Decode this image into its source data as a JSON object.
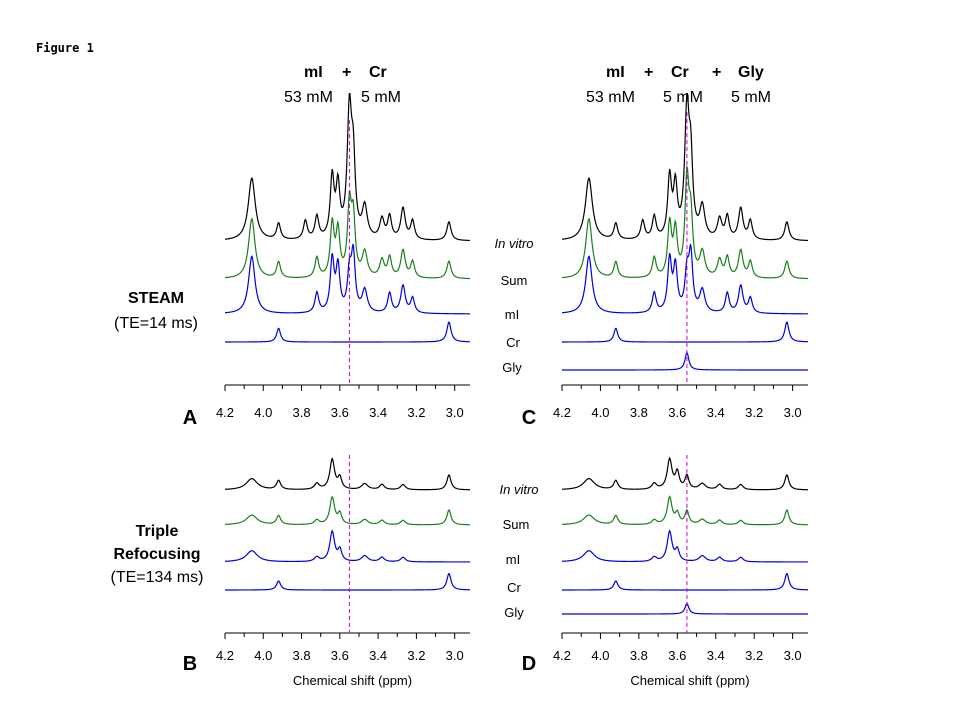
{
  "figure_label": "Figure 1",
  "colors": {
    "in_vitro": "#000000",
    "sum": "#1a7f1a",
    "basis": "#0000dd",
    "marker": "#cc00cc"
  },
  "headers": {
    "left": {
      "line1": [
        "mI",
        "+",
        "Cr"
      ],
      "line2": [
        "53 mM",
        "5 mM"
      ]
    },
    "right": {
      "line1": [
        "mI",
        "+",
        "Cr",
        "+",
        "Gly"
      ],
      "line2": [
        "53 mM",
        "5 mM",
        "5 mM"
      ]
    }
  },
  "sequences": {
    "steam": {
      "name": "STEAM",
      "param": "(TE=14 ms)"
    },
    "triple": {
      "name_line1": "Triple",
      "name_line2": "Refocusing",
      "param": "(TE=134 ms)"
    }
  },
  "row_labels": {
    "top": [
      "In vitro",
      "Sum",
      "mI",
      "Cr",
      "Gly"
    ],
    "bottom": [
      "In vitro",
      "Sum",
      "mI",
      "Cr",
      "Gly"
    ]
  },
  "chart_data": [
    {
      "type": "line",
      "panel": "A",
      "title": "STEAM (TE=14 ms)",
      "xlabel": "",
      "xlim": [
        4.2,
        2.92
      ],
      "xreversed": true,
      "xticks": [
        "4.2",
        "4.0",
        "3.8",
        "3.6",
        "3.4",
        "3.2",
        "3.0"
      ],
      "marker_ppm": 3.55,
      "series": [
        {
          "name": "In vitro",
          "color": "#000000",
          "peaks": [
            [
              4.06,
              0.5,
              0.022
            ],
            [
              3.92,
              0.13,
              0.012
            ],
            [
              3.78,
              0.15,
              0.012
            ],
            [
              3.72,
              0.18,
              0.012
            ],
            [
              3.64,
              0.48,
              0.012
            ],
            [
              3.61,
              0.4,
              0.012
            ],
            [
              3.55,
              1.0,
              0.014
            ],
            [
              3.53,
              0.55,
              0.012
            ],
            [
              3.47,
              0.25,
              0.016
            ],
            [
              3.38,
              0.16,
              0.014
            ],
            [
              3.34,
              0.18,
              0.012
            ],
            [
              3.27,
              0.25,
              0.014
            ],
            [
              3.22,
              0.15,
              0.012
            ],
            [
              3.03,
              0.15,
              0.013
            ]
          ]
        },
        {
          "name": "Sum",
          "color": "#1a7f1a",
          "peaks": [
            [
              4.06,
              0.48,
              0.02
            ],
            [
              3.92,
              0.13,
              0.012
            ],
            [
              3.72,
              0.16,
              0.012
            ],
            [
              3.64,
              0.42,
              0.012
            ],
            [
              3.61,
              0.36,
              0.012
            ],
            [
              3.53,
              0.45,
              0.012
            ],
            [
              3.55,
              0.55,
              0.012
            ],
            [
              3.47,
              0.2,
              0.016
            ],
            [
              3.38,
              0.14,
              0.014
            ],
            [
              3.34,
              0.16,
              0.012
            ],
            [
              3.27,
              0.22,
              0.014
            ],
            [
              3.22,
              0.13,
              0.012
            ],
            [
              3.03,
              0.14,
              0.013
            ]
          ]
        },
        {
          "name": "mI",
          "color": "#0000dd",
          "peaks": [
            [
              4.06,
              0.46,
              0.02
            ],
            [
              3.72,
              0.16,
              0.012
            ],
            [
              3.64,
              0.42,
              0.012
            ],
            [
              3.61,
              0.36,
              0.012
            ],
            [
              3.53,
              0.45,
              0.012
            ],
            [
              3.55,
              0.3,
              0.012
            ],
            [
              3.47,
              0.18,
              0.016
            ],
            [
              3.34,
              0.16,
              0.012
            ],
            [
              3.27,
              0.22,
              0.014
            ],
            [
              3.22,
              0.12,
              0.012
            ]
          ]
        },
        {
          "name": "Cr",
          "color": "#0000dd",
          "peaks": [
            [
              3.92,
              0.11,
              0.012
            ],
            [
              3.03,
              0.16,
              0.013
            ]
          ]
        }
      ]
    },
    {
      "type": "line",
      "panel": "C",
      "title": "",
      "xlabel": "",
      "xlim": [
        4.2,
        2.92
      ],
      "xreversed": true,
      "xticks": [
        "4.2",
        "4.0",
        "3.8",
        "3.6",
        "3.4",
        "3.2",
        "3.0"
      ],
      "marker_ppm": 3.55,
      "series": [
        {
          "name": "In vitro",
          "color": "#000000",
          "peaks": [
            [
              4.06,
              0.5,
              0.022
            ],
            [
              3.92,
              0.13,
              0.012
            ],
            [
              3.78,
              0.15,
              0.012
            ],
            [
              3.72,
              0.18,
              0.012
            ],
            [
              3.64,
              0.48,
              0.012
            ],
            [
              3.61,
              0.4,
              0.012
            ],
            [
              3.55,
              1.0,
              0.014
            ],
            [
              3.53,
              0.55,
              0.012
            ],
            [
              3.47,
              0.25,
              0.016
            ],
            [
              3.38,
              0.16,
              0.014
            ],
            [
              3.34,
              0.18,
              0.012
            ],
            [
              3.27,
              0.25,
              0.014
            ],
            [
              3.22,
              0.15,
              0.012
            ],
            [
              3.03,
              0.15,
              0.013
            ]
          ]
        },
        {
          "name": "Sum",
          "color": "#1a7f1a",
          "peaks": [
            [
              4.06,
              0.48,
              0.02
            ],
            [
              3.92,
              0.13,
              0.012
            ],
            [
              3.72,
              0.16,
              0.012
            ],
            [
              3.64,
              0.42,
              0.012
            ],
            [
              3.61,
              0.36,
              0.012
            ],
            [
              3.53,
              0.45,
              0.012
            ],
            [
              3.55,
              0.75,
              0.012
            ],
            [
              3.47,
              0.2,
              0.016
            ],
            [
              3.38,
              0.14,
              0.014
            ],
            [
              3.34,
              0.16,
              0.012
            ],
            [
              3.27,
              0.22,
              0.014
            ],
            [
              3.22,
              0.13,
              0.012
            ],
            [
              3.03,
              0.14,
              0.013
            ]
          ]
        },
        {
          "name": "mI",
          "color": "#0000dd",
          "peaks": [
            [
              4.06,
              0.46,
              0.02
            ],
            [
              3.72,
              0.16,
              0.012
            ],
            [
              3.64,
              0.42,
              0.012
            ],
            [
              3.61,
              0.36,
              0.012
            ],
            [
              3.53,
              0.45,
              0.012
            ],
            [
              3.55,
              0.3,
              0.012
            ],
            [
              3.47,
              0.18,
              0.016
            ],
            [
              3.34,
              0.16,
              0.012
            ],
            [
              3.27,
              0.22,
              0.014
            ],
            [
              3.22,
              0.12,
              0.012
            ]
          ]
        },
        {
          "name": "Cr",
          "color": "#0000dd",
          "peaks": [
            [
              3.92,
              0.11,
              0.012
            ],
            [
              3.03,
              0.16,
              0.013
            ]
          ]
        },
        {
          "name": "Gly",
          "color": "#0000dd",
          "peaks": [
            [
              3.55,
              0.14,
              0.012
            ]
          ]
        }
      ]
    },
    {
      "type": "line",
      "panel": "B",
      "title": "Triple Refocusing (TE=134 ms)",
      "xlabel": "Chemical shift (ppm)",
      "xlim": [
        4.2,
        2.92
      ],
      "xreversed": true,
      "xticks": [
        "4.2",
        "4.0",
        "3.8",
        "3.6",
        "3.4",
        "3.2",
        "3.0"
      ],
      "marker_ppm": 3.55,
      "series": [
        {
          "name": "In vitro",
          "color": "#000000",
          "peaks": [
            [
              4.06,
              0.15,
              0.035
            ],
            [
              3.92,
              0.12,
              0.013
            ],
            [
              3.72,
              0.08,
              0.015
            ],
            [
              3.64,
              0.4,
              0.015
            ],
            [
              3.6,
              0.15,
              0.012
            ],
            [
              3.47,
              0.08,
              0.02
            ],
            [
              3.38,
              0.07,
              0.015
            ],
            [
              3.27,
              0.07,
              0.015
            ],
            [
              3.03,
              0.2,
              0.013
            ]
          ]
        },
        {
          "name": "Sum",
          "color": "#1a7f1a",
          "peaks": [
            [
              4.06,
              0.13,
              0.035
            ],
            [
              3.92,
              0.12,
              0.013
            ],
            [
              3.72,
              0.06,
              0.015
            ],
            [
              3.64,
              0.36,
              0.015
            ],
            [
              3.6,
              0.14,
              0.012
            ],
            [
              3.47,
              0.07,
              0.02
            ],
            [
              3.38,
              0.06,
              0.015
            ],
            [
              3.27,
              0.06,
              0.015
            ],
            [
              3.03,
              0.2,
              0.013
            ]
          ]
        },
        {
          "name": "mI",
          "color": "#0000dd",
          "peaks": [
            [
              4.06,
              0.15,
              0.035
            ],
            [
              3.72,
              0.06,
              0.015
            ],
            [
              3.64,
              0.4,
              0.015
            ],
            [
              3.6,
              0.15,
              0.012
            ],
            [
              3.47,
              0.08,
              0.02
            ],
            [
              3.38,
              0.06,
              0.015
            ],
            [
              3.27,
              0.06,
              0.015
            ]
          ]
        },
        {
          "name": "Cr",
          "color": "#0000dd",
          "peaks": [
            [
              3.92,
              0.12,
              0.013
            ],
            [
              3.03,
              0.22,
              0.013
            ]
          ]
        }
      ]
    },
    {
      "type": "line",
      "panel": "D",
      "title": "",
      "xlabel": "Chemical shift (ppm)",
      "xlim": [
        4.2,
        2.92
      ],
      "xreversed": true,
      "xticks": [
        "4.2",
        "4.0",
        "3.8",
        "3.6",
        "3.4",
        "3.2",
        "3.0"
      ],
      "marker_ppm": 3.55,
      "series": [
        {
          "name": "In vitro",
          "color": "#000000",
          "peaks": [
            [
              4.06,
              0.15,
              0.035
            ],
            [
              3.92,
              0.12,
              0.013
            ],
            [
              3.72,
              0.08,
              0.015
            ],
            [
              3.64,
              0.4,
              0.015
            ],
            [
              3.6,
              0.22,
              0.012
            ],
            [
              3.55,
              0.18,
              0.012
            ],
            [
              3.47,
              0.08,
              0.02
            ],
            [
              3.38,
              0.07,
              0.015
            ],
            [
              3.27,
              0.07,
              0.015
            ],
            [
              3.03,
              0.2,
              0.013
            ]
          ]
        },
        {
          "name": "Sum",
          "color": "#1a7f1a",
          "peaks": [
            [
              4.06,
              0.13,
              0.035
            ],
            [
              3.92,
              0.12,
              0.013
            ],
            [
              3.72,
              0.06,
              0.015
            ],
            [
              3.64,
              0.36,
              0.015
            ],
            [
              3.6,
              0.14,
              0.012
            ],
            [
              3.55,
              0.18,
              0.012
            ],
            [
              3.47,
              0.07,
              0.02
            ],
            [
              3.38,
              0.06,
              0.015
            ],
            [
              3.27,
              0.06,
              0.015
            ],
            [
              3.03,
              0.2,
              0.013
            ]
          ]
        },
        {
          "name": "mI",
          "color": "#0000dd",
          "peaks": [
            [
              4.06,
              0.15,
              0.035
            ],
            [
              3.72,
              0.06,
              0.015
            ],
            [
              3.64,
              0.4,
              0.015
            ],
            [
              3.6,
              0.15,
              0.012
            ],
            [
              3.47,
              0.08,
              0.02
            ],
            [
              3.38,
              0.06,
              0.015
            ],
            [
              3.27,
              0.06,
              0.015
            ]
          ]
        },
        {
          "name": "Cr",
          "color": "#0000dd",
          "peaks": [
            [
              3.92,
              0.12,
              0.013
            ],
            [
              3.03,
              0.22,
              0.013
            ]
          ]
        },
        {
          "name": "Gly",
          "color": "#0000dd",
          "peaks": [
            [
              3.55,
              0.14,
              0.012
            ]
          ]
        }
      ]
    }
  ]
}
